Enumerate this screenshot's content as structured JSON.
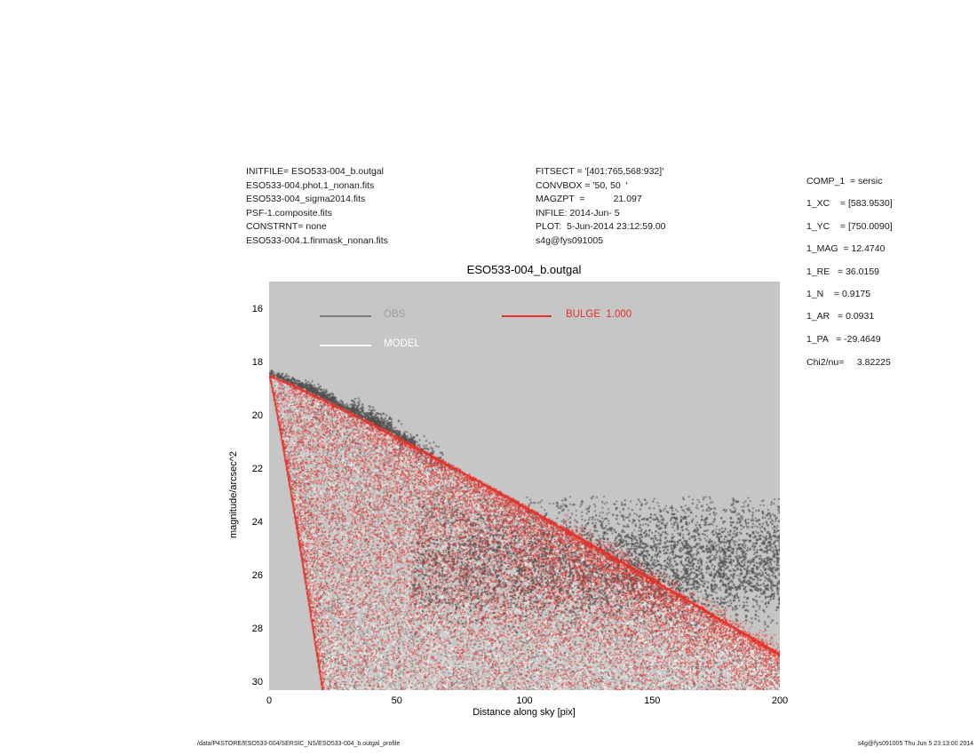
{
  "header_left": {
    "lines": [
      "INITFILE= ESO533-004_b.outgal",
      "ESO533-004.phot.1_nonan.fits",
      "ESO533-004_sigma2014.fits",
      "PSF-1.composite.fits",
      "CONSTRNT= none",
      "ESO533-004.1.finmask_nonan.fits"
    ]
  },
  "header_mid": {
    "lines": [
      "FITSECT = '[401:765,568:932]'",
      "CONVBOX = '50, 50  '",
      "MAGZPT  =           21.097",
      "INFILE: 2014-Jun- 5",
      "PLOT:  5-Jun-2014 23:12:59.00",
      "s4g@fys091005"
    ]
  },
  "header_right": {
    "lines": [
      "COMP_1  = sersic",
      "1_XC    = [583.9530]",
      "1_YC    = [750.0090]",
      "1_MAG  = 12.4740",
      "1_RE   = 36.0159",
      "1_N    = 0.9175",
      "1_AR   = 0.0931",
      "1_PA   = -29.4649"
    ],
    "chi2": "Chi2/nu=     3.82225"
  },
  "footer": {
    "left": "/data/P4STORE/ESO533-004/SERSIC_NS/ESO533-004_b.outgal_profile",
    "right": "s4g@fys091005  Thu Jun  5 23:13:00 2014"
  },
  "chart_data": {
    "type": "scatter",
    "title": "ESO533-004_b.outgal",
    "xlabel": "Distance along sky [pix]",
    "ylabel": "magnitude/arcsec^2",
    "xlim": [
      0,
      200
    ],
    "ylim": [
      30.3,
      15.0
    ],
    "y_inverted": true,
    "xticks": [
      0,
      50,
      100,
      150,
      200
    ],
    "yticks": [
      16,
      18,
      20,
      22,
      24,
      26,
      28,
      30
    ],
    "grid": false,
    "plot_bg": "#c6c6c6",
    "legend": {
      "position": "top-inside",
      "entries": [
        {
          "label": "OBS",
          "line_color": "#7d7d7d",
          "text_color": "#9c9c9c"
        },
        {
          "label": "MODEL",
          "line_color": "#ffffff",
          "text_color": "#ffffff"
        },
        {
          "label": "BULGE  1.000",
          "line_color": "#e5322a",
          "text_color": "#e5322a"
        }
      ]
    },
    "series": [
      {
        "name": "BULGE",
        "color": "#e5322a",
        "description": "Sersic bulge model pixels: wedge fan from apex (0, 18.47) bounded above by major-axis profile and left by minor-axis edge reaching mag 30.3 at d=21",
        "sersic": {
          "mu0": 18.47,
          "k": 0.0325,
          "exponent": 1.09,
          "axis_ratio": 0.0931,
          "r_max": 228
        },
        "upper_envelope": [
          [
            0,
            18.47
          ],
          [
            50,
            20.8
          ],
          [
            100,
            23.4
          ],
          [
            150,
            26.1
          ],
          [
            200,
            28.9
          ]
        ]
      },
      {
        "name": "MODEL",
        "color": "#ffffff",
        "description": "Composite model pixels filling same wedge, fraction increasing toward faint magnitudes"
      },
      {
        "name": "OBS",
        "color": "#525252",
        "description": "Observed pixels: bright profile hugging bulge envelope for d=0-57 with star clumps near d=20 and d=38; sky-noise cloud for d=55-200 centered mag 25.5, sigma 1.1, upper cutoff mag 23.1",
        "cloud": {
          "d_range": [
            55,
            200
          ],
          "mu_mean": 25.55,
          "mu_sigma": 1.05,
          "mu_top": 23.1,
          "mu_bottom": 28.9
        },
        "bright_profile_d_range": [
          0,
          57
        ]
      }
    ]
  }
}
